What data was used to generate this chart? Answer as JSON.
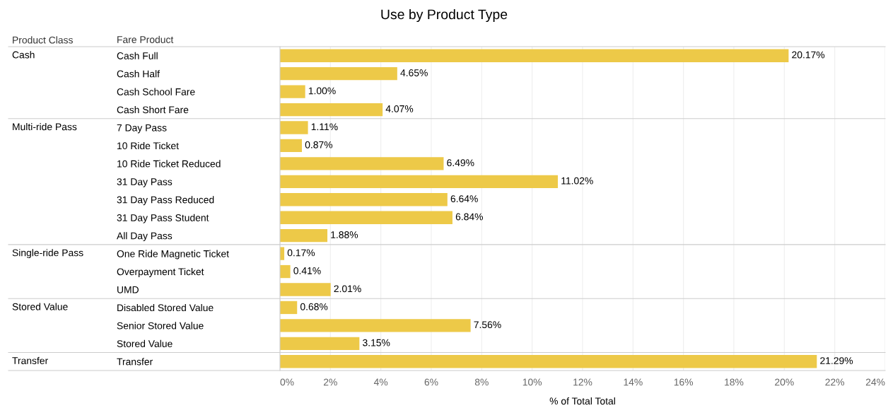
{
  "chart_data": {
    "type": "bar",
    "orientation": "horizontal",
    "title": "Use by Product Type",
    "xlabel": "% of Total Total",
    "ylabel": "Fare Product",
    "categories": [
      "Cash Full",
      "Cash Half",
      "Cash School Fare",
      "Cash Short Fare",
      "7 Day Pass",
      "10 Ride Ticket",
      "10 Ride Ticket Reduced",
      "31 Day Pass",
      "31 Day Pass Reduced",
      "31 Day Pass Student",
      "All Day Pass",
      "One Ride Magnetic Ticket",
      "Overpayment Ticket",
      "UMD",
      "Disabled Stored Value",
      "Senior Stored Value",
      "Stored Value",
      "Transfer"
    ],
    "values": [
      20.17,
      4.65,
      1.0,
      4.07,
      1.11,
      0.87,
      6.49,
      11.02,
      6.64,
      6.84,
      1.88,
      0.17,
      0.41,
      2.01,
      0.68,
      7.56,
      3.15,
      21.29
    ],
    "value_labels": [
      "20.17%",
      "4.65%",
      "1.00%",
      "4.07%",
      "1.11%",
      "0.87%",
      "6.49%",
      "11.02%",
      "6.64%",
      "6.84%",
      "1.88%",
      "0.17%",
      "0.41%",
      "2.01%",
      "0.68%",
      "7.56%",
      "3.15%",
      "21.29%"
    ],
    "color": "#edc948",
    "xlim": [
      0,
      24
    ],
    "xticks": [
      {
        "value": 0,
        "label": "0%"
      },
      {
        "value": 2,
        "label": "2%"
      },
      {
        "value": 4,
        "label": "4%"
      },
      {
        "value": 6,
        "label": "6%"
      },
      {
        "value": 8,
        "label": "8%"
      },
      {
        "value": 10,
        "label": "10%"
      },
      {
        "value": 12,
        "label": "12%"
      },
      {
        "value": 14,
        "label": "14%"
      },
      {
        "value": 16,
        "label": "16%"
      },
      {
        "value": 18,
        "label": "18%"
      },
      {
        "value": 20,
        "label": "20%"
      },
      {
        "value": 22,
        "label": "22%"
      },
      {
        "value": 24,
        "label": "24%"
      }
    ],
    "grid": "x",
    "y2_categories": [
      "Cash",
      null,
      null,
      null,
      "Multi-ride Pass",
      null,
      null,
      null,
      null,
      null,
      null,
      "Single-ride Pass",
      null,
      null,
      "Stored Value",
      null,
      null,
      "Transfer"
    ],
    "annotations": [
      "Product Class"
    ]
  }
}
